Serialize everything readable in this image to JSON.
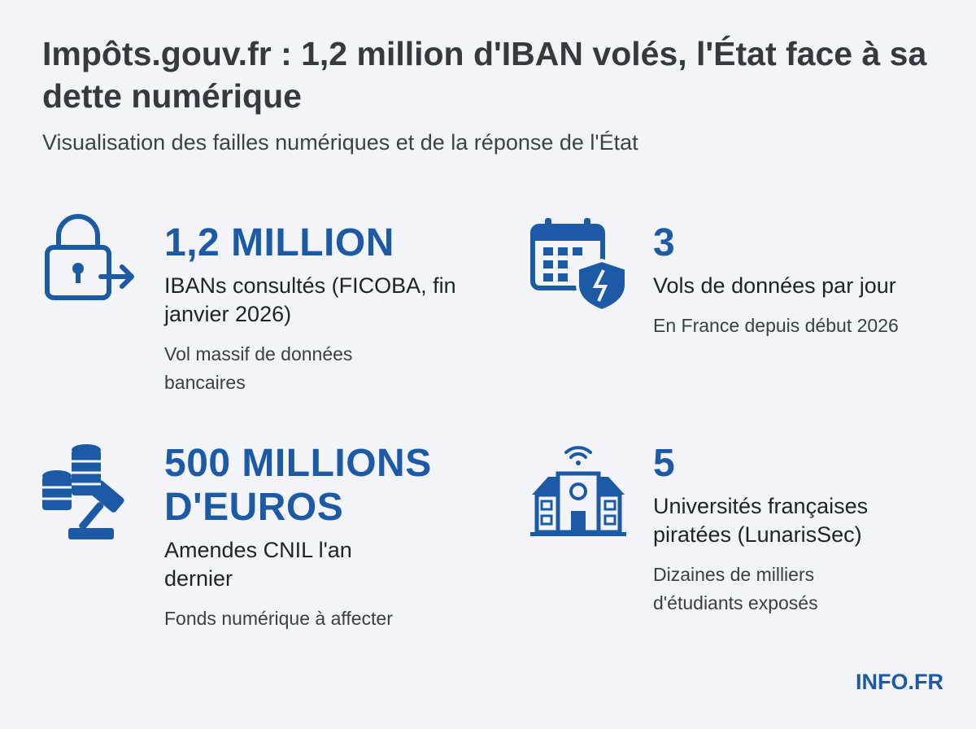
{
  "header": {
    "title": "Impôts.gouv.fr : 1,2 million d'IBAN volés, l'État face à sa dette numérique",
    "subtitle": "Visualisation des failles numériques et de la réponse de l'État"
  },
  "stats": [
    {
      "value": "1,2 MILLION",
      "label": "IBANs consultés (FICOBA, fin janvier 2026)",
      "note": "Vol massif de données bancaires"
    },
    {
      "value": "3",
      "label": "Vols de données par jour",
      "note": "En France depuis début 2026"
    },
    {
      "value": "500 MILLIONS D'EUROS",
      "label": "Amendes CNIL l'an dernier",
      "note": "Fonds numérique à affecter"
    },
    {
      "value": "5",
      "label": "Universités françaises piratées (LunarisSec)",
      "note": "Dizaines de milliers d'étudiants exposés"
    }
  ],
  "footer": {
    "brand": "INFO.FR"
  }
}
